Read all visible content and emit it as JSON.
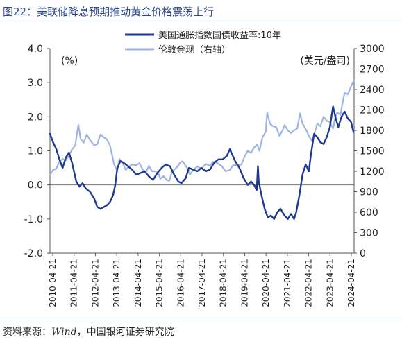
{
  "title": "图22：美联储降息预期推动黄金价格震荡上行",
  "source_label": "资料来源：",
  "source_name": "Wind",
  "source_rest": "，中国银河证券研究院",
  "chart_data": {
    "type": "line",
    "left_unit": "(%)",
    "right_unit": "(美元/盎司)",
    "y_left": {
      "min": -2.0,
      "max": 4.0,
      "ticks": [
        "4.0",
        "3.0",
        "2.0",
        "1.0",
        "0.0",
        "-1.0",
        "-2.0"
      ]
    },
    "y_right": {
      "min": 0,
      "max": 3000,
      "ticks": [
        "3000",
        "2700",
        "2400",
        "2100",
        "1800",
        "1500",
        "1200",
        "900",
        "600",
        "300",
        "0"
      ]
    },
    "x_ticks": [
      "2010-04-21",
      "2011-04-21",
      "2012-04-21",
      "2013-04-21",
      "2014-04-21",
      "2015-04-21",
      "2016-04-21",
      "2017-04-21",
      "2018-04-21",
      "2019-04-21",
      "2020-04-21",
      "2021-04-21",
      "2022-04-21",
      "2023-04-21",
      "2024-04-21"
    ],
    "x_range": [
      2010.3,
      2024.75
    ],
    "zero_line": true,
    "legend_position": "top-center",
    "series": [
      {
        "name": "美国通胀指数国债收益率:10年",
        "axis": "left",
        "color": "#1F3A93",
        "points": [
          [
            2010.3,
            1.5
          ],
          [
            2010.45,
            1.25
          ],
          [
            2010.6,
            1.05
          ],
          [
            2010.75,
            0.75
          ],
          [
            2010.9,
            0.5
          ],
          [
            2011.05,
            0.8
          ],
          [
            2011.2,
            0.95
          ],
          [
            2011.35,
            0.65
          ],
          [
            2011.55,
            0.1
          ],
          [
            2011.7,
            -0.05
          ],
          [
            2011.85,
            0.05
          ],
          [
            2012.0,
            -0.1
          ],
          [
            2012.2,
            -0.2
          ],
          [
            2012.4,
            -0.4
          ],
          [
            2012.55,
            -0.65
          ],
          [
            2012.7,
            -0.7
          ],
          [
            2012.85,
            -0.65
          ],
          [
            2013.0,
            -0.6
          ],
          [
            2013.15,
            -0.5
          ],
          [
            2013.3,
            -0.3
          ],
          [
            2013.4,
            0.0
          ],
          [
            2013.5,
            0.5
          ],
          [
            2013.65,
            0.7
          ],
          [
            2013.8,
            0.65
          ],
          [
            2014.0,
            0.55
          ],
          [
            2014.2,
            0.45
          ],
          [
            2014.4,
            0.3
          ],
          [
            2014.6,
            0.35
          ],
          [
            2014.8,
            0.4
          ],
          [
            2015.0,
            0.25
          ],
          [
            2015.2,
            0.15
          ],
          [
            2015.4,
            0.35
          ],
          [
            2015.6,
            0.5
          ],
          [
            2015.8,
            0.6
          ],
          [
            2016.0,
            0.55
          ],
          [
            2016.2,
            0.3
          ],
          [
            2016.4,
            0.1
          ],
          [
            2016.55,
            0.05
          ],
          [
            2016.75,
            0.2
          ],
          [
            2016.9,
            0.5
          ],
          [
            2017.1,
            0.45
          ],
          [
            2017.3,
            0.4
          ],
          [
            2017.5,
            0.5
          ],
          [
            2017.7,
            0.4
          ],
          [
            2017.9,
            0.45
          ],
          [
            2018.1,
            0.65
          ],
          [
            2018.3,
            0.75
          ],
          [
            2018.5,
            0.75
          ],
          [
            2018.7,
            0.85
          ],
          [
            2018.85,
            1.05
          ],
          [
            2018.95,
            0.9
          ],
          [
            2019.1,
            0.7
          ],
          [
            2019.3,
            0.5
          ],
          [
            2019.5,
            0.2
          ],
          [
            2019.7,
            0.0
          ],
          [
            2019.85,
            0.1
          ],
          [
            2020.0,
            0.0
          ],
          [
            2020.12,
            -0.15
          ],
          [
            2020.18,
            0.55
          ],
          [
            2020.22,
            0.1
          ],
          [
            2020.35,
            -0.3
          ],
          [
            2020.5,
            -0.7
          ],
          [
            2020.65,
            -0.95
          ],
          [
            2020.8,
            -0.9
          ],
          [
            2020.95,
            -1.0
          ],
          [
            2021.1,
            -0.8
          ],
          [
            2021.25,
            -0.7
          ],
          [
            2021.45,
            -0.9
          ],
          [
            2021.6,
            -1.0
          ],
          [
            2021.75,
            -0.85
          ],
          [
            2021.9,
            -1.0
          ],
          [
            2022.0,
            -0.8
          ],
          [
            2022.15,
            -0.3
          ],
          [
            2022.3,
            0.3
          ],
          [
            2022.45,
            0.6
          ],
          [
            2022.6,
            0.4
          ],
          [
            2022.7,
            0.9
          ],
          [
            2022.85,
            1.5
          ],
          [
            2023.0,
            1.4
          ],
          [
            2023.15,
            1.25
          ],
          [
            2023.3,
            1.2
          ],
          [
            2023.45,
            1.4
          ],
          [
            2023.6,
            1.7
          ],
          [
            2023.75,
            2.3
          ],
          [
            2023.9,
            1.9
          ],
          [
            2024.0,
            1.7
          ],
          [
            2024.15,
            2.0
          ],
          [
            2024.3,
            2.15
          ],
          [
            2024.45,
            1.95
          ],
          [
            2024.6,
            1.85
          ],
          [
            2024.72,
            1.55
          ]
        ]
      },
      {
        "name": "伦敦金现（右轴）",
        "axis": "right",
        "color": "#9DB4E0",
        "points": [
          [
            2010.3,
            1150
          ],
          [
            2010.45,
            1220
          ],
          [
            2010.6,
            1240
          ],
          [
            2010.75,
            1340
          ],
          [
            2010.9,
            1380
          ],
          [
            2011.05,
            1360
          ],
          [
            2011.2,
            1430
          ],
          [
            2011.35,
            1520
          ],
          [
            2011.5,
            1580
          ],
          [
            2011.6,
            1790
          ],
          [
            2011.65,
            1880
          ],
          [
            2011.75,
            1680
          ],
          [
            2011.9,
            1620
          ],
          [
            2012.05,
            1740
          ],
          [
            2012.2,
            1660
          ],
          [
            2012.4,
            1580
          ],
          [
            2012.55,
            1600
          ],
          [
            2012.7,
            1740
          ],
          [
            2012.85,
            1700
          ],
          [
            2013.0,
            1670
          ],
          [
            2013.15,
            1580
          ],
          [
            2013.28,
            1400
          ],
          [
            2013.35,
            1300
          ],
          [
            2013.5,
            1210
          ],
          [
            2013.6,
            1380
          ],
          [
            2013.75,
            1320
          ],
          [
            2013.9,
            1220
          ],
          [
            2014.05,
            1270
          ],
          [
            2014.2,
            1300
          ],
          [
            2014.4,
            1290
          ],
          [
            2014.55,
            1320
          ],
          [
            2014.7,
            1230
          ],
          [
            2014.85,
            1180
          ],
          [
            2015.0,
            1280
          ],
          [
            2015.15,
            1200
          ],
          [
            2015.3,
            1200
          ],
          [
            2015.45,
            1170
          ],
          [
            2015.55,
            1090
          ],
          [
            2015.7,
            1130
          ],
          [
            2015.85,
            1070
          ],
          [
            2015.97,
            1060
          ],
          [
            2016.1,
            1200
          ],
          [
            2016.3,
            1250
          ],
          [
            2016.5,
            1330
          ],
          [
            2016.6,
            1350
          ],
          [
            2016.8,
            1260
          ],
          [
            2016.95,
            1150
          ],
          [
            2017.1,
            1220
          ],
          [
            2017.3,
            1270
          ],
          [
            2017.5,
            1240
          ],
          [
            2017.7,
            1310
          ],
          [
            2017.9,
            1280
          ],
          [
            2018.05,
            1340
          ],
          [
            2018.25,
            1320
          ],
          [
            2018.45,
            1280
          ],
          [
            2018.65,
            1200
          ],
          [
            2018.85,
            1220
          ],
          [
            2019.0,
            1290
          ],
          [
            2019.2,
            1290
          ],
          [
            2019.4,
            1300
          ],
          [
            2019.55,
            1420
          ],
          [
            2019.7,
            1500
          ],
          [
            2019.85,
            1470
          ],
          [
            2020.0,
            1550
          ],
          [
            2020.15,
            1590
          ],
          [
            2020.25,
            1500
          ],
          [
            2020.4,
            1700
          ],
          [
            2020.55,
            1780
          ],
          [
            2020.62,
            2060
          ],
          [
            2020.75,
            1900
          ],
          [
            2020.9,
            1860
          ],
          [
            2021.05,
            1850
          ],
          [
            2021.2,
            1720
          ],
          [
            2021.35,
            1800
          ],
          [
            2021.45,
            1880
          ],
          [
            2021.6,
            1800
          ],
          [
            2021.75,
            1760
          ],
          [
            2021.9,
            1800
          ],
          [
            2022.05,
            1830
          ],
          [
            2022.18,
            2050
          ],
          [
            2022.3,
            1900
          ],
          [
            2022.45,
            1820
          ],
          [
            2022.6,
            1720
          ],
          [
            2022.75,
            1640
          ],
          [
            2022.85,
            1740
          ],
          [
            2023.0,
            1900
          ],
          [
            2023.15,
            1860
          ],
          [
            2023.3,
            2000
          ],
          [
            2023.45,
            1940
          ],
          [
            2023.6,
            1920
          ],
          [
            2023.75,
            1830
          ],
          [
            2023.85,
            1990
          ],
          [
            2023.95,
            2060
          ],
          [
            2024.1,
            2030
          ],
          [
            2024.2,
            2200
          ],
          [
            2024.3,
            2350
          ],
          [
            2024.45,
            2330
          ],
          [
            2024.55,
            2400
          ],
          [
            2024.65,
            2480
          ],
          [
            2024.75,
            2530
          ]
        ]
      }
    ]
  }
}
